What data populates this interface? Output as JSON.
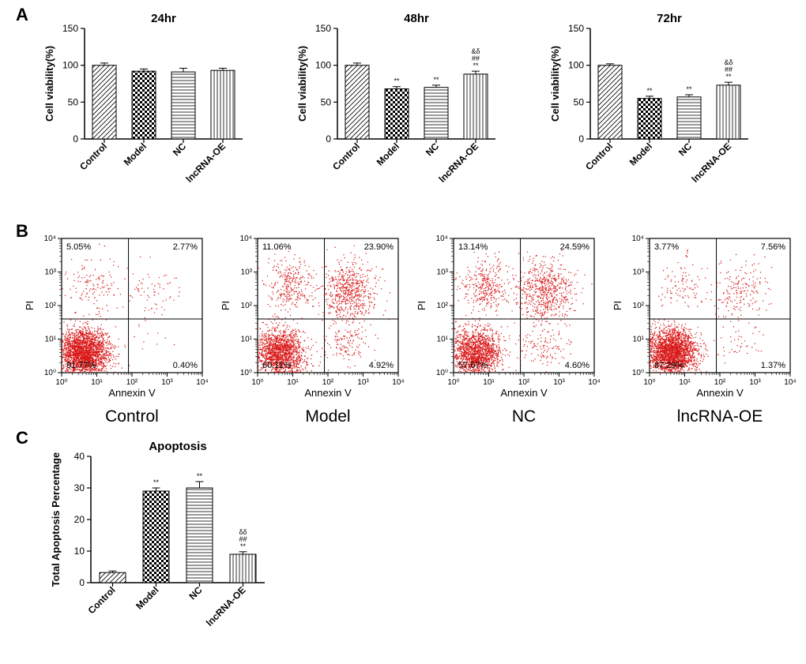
{
  "panelA": {
    "charts": [
      {
        "title": "24hr",
        "categories": [
          "Control",
          "Model",
          "NC",
          "lncRNA-OE"
        ],
        "values": [
          100,
          92,
          91,
          93
        ],
        "errors": [
          3,
          3,
          5,
          3
        ],
        "sig": [
          "",
          "",
          "",
          ""
        ],
        "patterns": [
          "diag",
          "checker",
          "hlines",
          "vlines"
        ]
      },
      {
        "title": "48hr",
        "categories": [
          "Control",
          "Model",
          "NC",
          "lncRNA-OE"
        ],
        "values": [
          100,
          68,
          70,
          88
        ],
        "errors": [
          3,
          3,
          3,
          4
        ],
        "sig": [
          "",
          "**",
          "**",
          "&δ\n##\n**"
        ],
        "patterns": [
          "diag",
          "checker",
          "hlines",
          "vlines"
        ]
      },
      {
        "title": "72hr",
        "categories": [
          "Control",
          "Model",
          "NC",
          "lncRNA-OE"
        ],
        "values": [
          100,
          55,
          57,
          73
        ],
        "errors": [
          2,
          3,
          3,
          4
        ],
        "sig": [
          "",
          "**",
          "**",
          "&δ\n##\n**"
        ],
        "patterns": [
          "diag",
          "checker",
          "hlines",
          "vlines"
        ]
      }
    ],
    "ylabel": "Cell viability(%)",
    "ylim": [
      0,
      150
    ],
    "ytick_step": 50,
    "bar_width": 0.6,
    "bar_fill": "#ffffff",
    "bar_stroke": "#000000",
    "title_fontsize": 14,
    "label_fontsize": 12
  },
  "panelB": {
    "plots": [
      {
        "title": "Control",
        "quad": {
          "q2": "5.05%",
          "q1": "2.77%",
          "q3": "91.77%",
          "q4": "0.40%"
        },
        "density": "control"
      },
      {
        "title": "Model",
        "quad": {
          "q2": "11.06%",
          "q1": "23.90%",
          "q3": "60.11%",
          "q4": "4.92%"
        },
        "density": "model"
      },
      {
        "title": "NC",
        "quad": {
          "q2": "13.14%",
          "q1": "24.59%",
          "q3": "57.67%",
          "q4": "4.60%"
        },
        "density": "nc"
      },
      {
        "title": "lncRNA-OE",
        "quad": {
          "q2": "3.77%",
          "q1": "7.56%",
          "q3": "87.29%",
          "q4": "1.37%"
        },
        "density": "oe"
      }
    ],
    "xlabel": "Annexin V",
    "ylabel": "PI",
    "ticks": [
      "10⁰",
      "10¹",
      "10²",
      "10³",
      "10⁴"
    ],
    "tick_positions": [
      0,
      1,
      2,
      3,
      4
    ],
    "gate_x": 1.9,
    "gate_y": 1.6,
    "dot_color": "#d91818",
    "axis_color": "#000000"
  },
  "panelC": {
    "title": "Apoptosis",
    "categories": [
      "Control",
      "Model",
      "NC",
      "lncRNA-OE"
    ],
    "values": [
      3.2,
      29,
      30,
      9
    ],
    "errors": [
      0.5,
      1,
      2,
      0.8
    ],
    "sig": [
      "",
      "**",
      "**",
      "δδ\n##\n**"
    ],
    "patterns": [
      "diag",
      "checker",
      "hlines",
      "vlines"
    ],
    "ylabel": "Total Apoptosis Percentage",
    "ylim": [
      0,
      40
    ],
    "ytick_step": 10,
    "bar_width": 0.6,
    "bar_fill": "#ffffff",
    "bar_stroke": "#000000",
    "title_fontsize": 14,
    "label_fontsize": 12
  },
  "labels": {
    "A": "A",
    "B": "B",
    "C": "C"
  }
}
